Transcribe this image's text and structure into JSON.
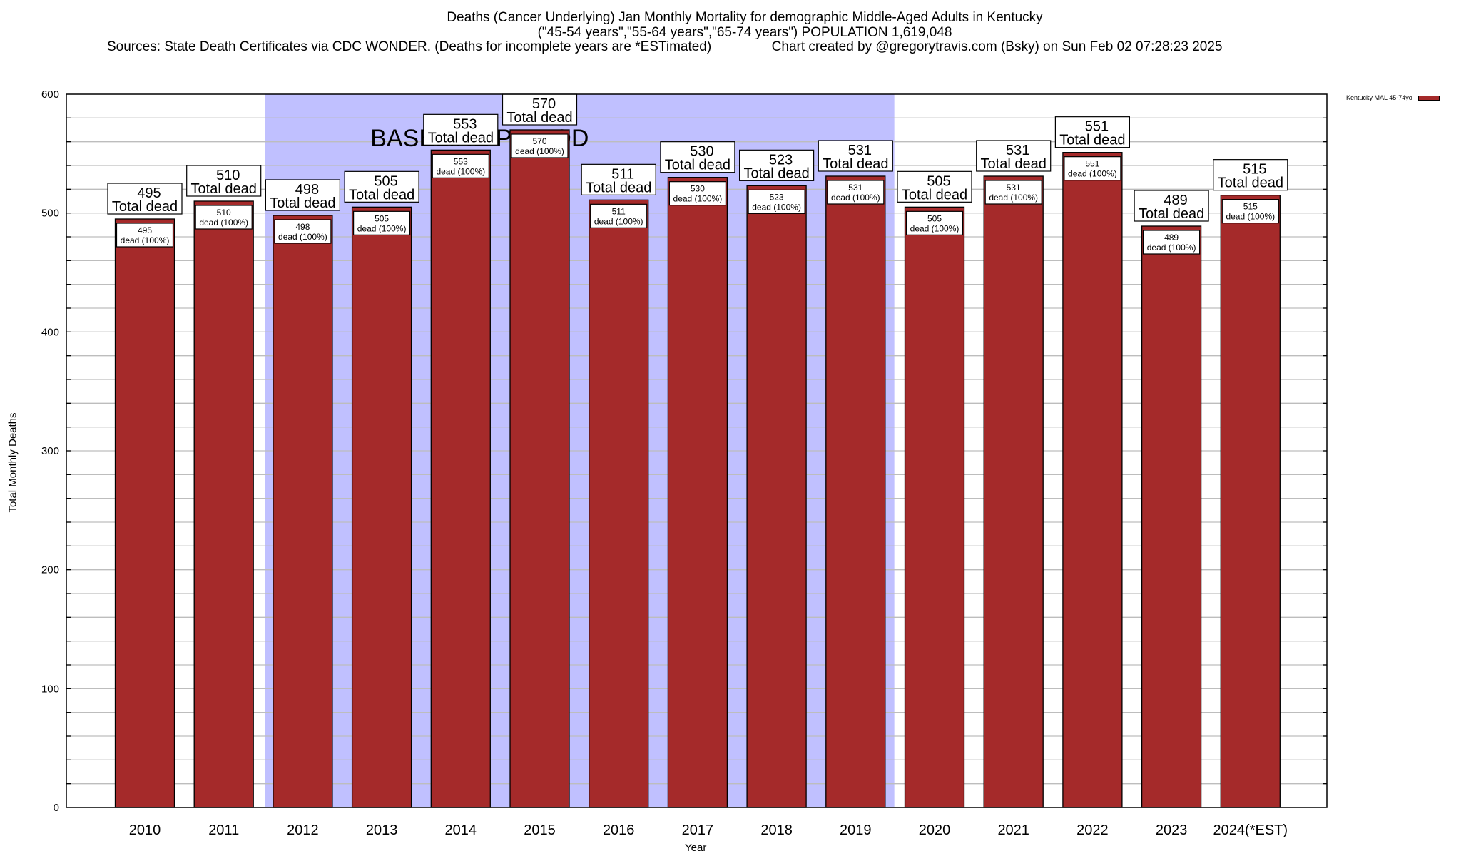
{
  "chart_data": {
    "type": "bar",
    "title_line1": "Deaths (Cancer Underlying) Jan Monthly Mortality for demographic Middle-Aged Adults in Kentucky",
    "title_line2": "(\"45-54 years\",\"55-64 years\",\"65-74 years\") POPULATION 1,619,048",
    "title_line3": "Sources: State Death Certificates via CDC WONDER. (Deaths for incomplete years are *ESTimated)                Chart created by @gregorytravis.com (Bsky) on Sun Feb 02 07:28:23 2025",
    "xlabel": "Year",
    "ylabel": "Total Monthly Deaths",
    "ylim": [
      0,
      600
    ],
    "yticks": [
      0,
      100,
      200,
      300,
      400,
      500,
      600
    ],
    "minor_tick_step": 20,
    "grid": true,
    "legend": {
      "placement": "top-right-outside",
      "entries": [
        "Kentucky MAL 45-74yo"
      ]
    },
    "categories": [
      "2010",
      "2011",
      "2012",
      "2013",
      "2014",
      "2015",
      "2016",
      "2017",
      "2018",
      "2019",
      "2020",
      "2021",
      "2022",
      "2023",
      "2024(*EST)"
    ],
    "series": [
      {
        "name": "Kentucky MAL 45-74yo",
        "color": "#a52a2a",
        "values": [
          495,
          510,
          498,
          505,
          553,
          570,
          511,
          530,
          523,
          531,
          505,
          531,
          551,
          489,
          515
        ]
      }
    ],
    "total_label_suffix": "Total dead",
    "inner_label_suffix": "dead (100%)",
    "baseline_period": {
      "label": "BASELINE PERIOD",
      "from_category": "2012",
      "to_category": "2019",
      "color": "#c0c0ff"
    }
  }
}
